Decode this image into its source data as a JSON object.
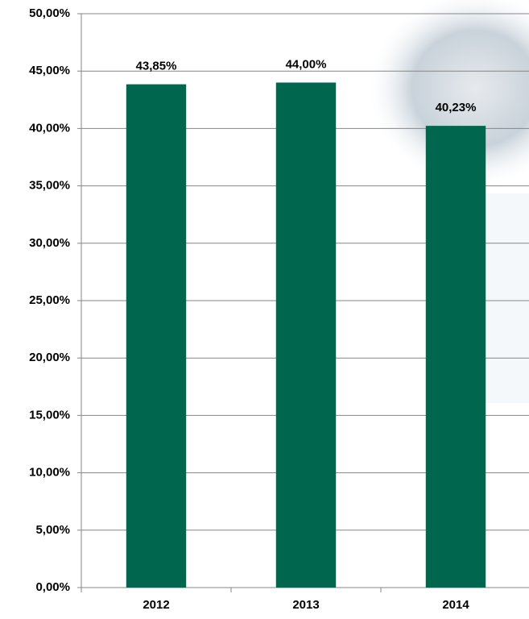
{
  "chart_data": {
    "type": "bar",
    "categories": [
      "2012",
      "2013",
      "2014"
    ],
    "values": [
      43.85,
      44.0,
      40.23
    ],
    "value_labels": [
      "43,85%",
      "44,00%",
      "40,23%"
    ],
    "color": "#00664d",
    "ylim": [
      0,
      50
    ],
    "yticks": [
      {
        "value": 0,
        "label": "0,00%"
      },
      {
        "value": 5,
        "label": "5,00%"
      },
      {
        "value": 10,
        "label": "10,00%"
      },
      {
        "value": 15,
        "label": "15,00%"
      },
      {
        "value": 20,
        "label": "20,00%"
      },
      {
        "value": 25,
        "label": "25,00%"
      },
      {
        "value": 30,
        "label": "30,00%"
      },
      {
        "value": 35,
        "label": "35,00%"
      },
      {
        "value": 40,
        "label": "40,00%"
      },
      {
        "value": 45,
        "label": "45,00%"
      },
      {
        "value": 50,
        "label": "50,00%"
      }
    ],
    "grid": true
  }
}
